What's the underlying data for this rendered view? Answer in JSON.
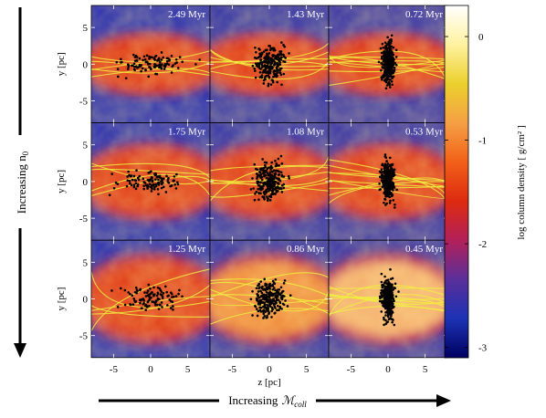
{
  "chart_data": {
    "type": "heatmap",
    "grid": {
      "rows": 3,
      "cols": 3
    },
    "panels": [
      {
        "row": 0,
        "col": 0,
        "time_label": "2.49 Myr"
      },
      {
        "row": 0,
        "col": 1,
        "time_label": "1.43 Myr"
      },
      {
        "row": 0,
        "col": 2,
        "time_label": "0.72 Myr"
      },
      {
        "row": 1,
        "col": 0,
        "time_label": "1.75 Myr"
      },
      {
        "row": 1,
        "col": 1,
        "time_label": "1.08 Myr"
      },
      {
        "row": 1,
        "col": 2,
        "time_label": "0.53 Myr"
      },
      {
        "row": 2,
        "col": 0,
        "time_label": "1.25 Myr"
      },
      {
        "row": 2,
        "col": 1,
        "time_label": "0.86 Myr"
      },
      {
        "row": 2,
        "col": 2,
        "time_label": "0.45 Myr"
      }
    ],
    "xlabel": "z [pc]",
    "ylabel": "y [pc]",
    "xlim": [
      -8,
      8
    ],
    "ylim": [
      -8,
      8
    ],
    "xticks": [
      -5,
      0,
      5
    ],
    "yticks": [
      5,
      0,
      -5
    ],
    "colorbar": {
      "label": "log column density [ g/cm² ]",
      "range": [
        -3.1,
        0.3
      ],
      "ticks": [
        0,
        -1,
        -2,
        -3
      ],
      "colors": [
        "#000060",
        "#1c32b4",
        "#5a2f9a",
        "#b2205a",
        "#dd2a10",
        "#f26018",
        "#f5a044",
        "#ebd02c",
        "#fff2a0",
        "#ffffff"
      ]
    },
    "row_axis_label": "Increasing n",
    "row_axis_subscript": "0",
    "col_axis_label": "Increasing",
    "col_axis_symbol": "ℳ",
    "col_axis_subscript": "coll",
    "sink_color": "#000000",
    "filament_color": "#f0f040",
    "grid_lines": false
  }
}
